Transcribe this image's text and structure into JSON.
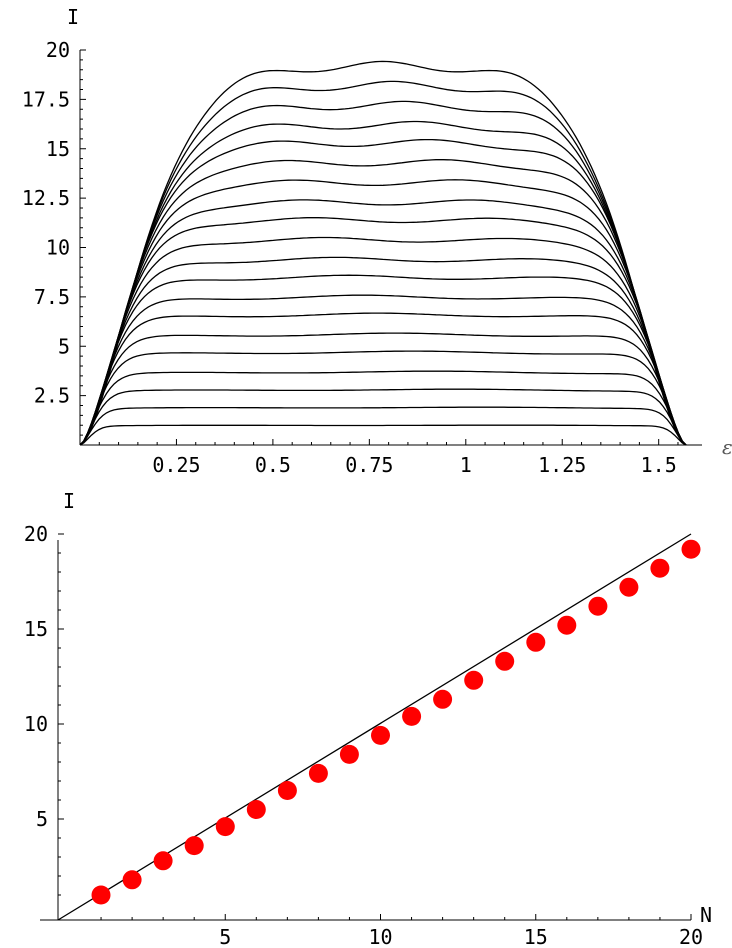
{
  "chart_data": [
    {
      "type": "line",
      "ylabel": "I",
      "xlabel": "ε",
      "xlim": [
        0,
        1.5708
      ],
      "ylim": [
        0,
        20
      ],
      "xticks": [
        "0.25",
        "0.5",
        "0.75",
        "1",
        "1.25",
        "1.5"
      ],
      "yticks": [
        "2.5",
        "5",
        "7.5",
        "10",
        "12.5",
        "15",
        "17.5",
        "20"
      ],
      "series_plateau_values": [
        1,
        1.9,
        2.8,
        3.7,
        4.7,
        5.6,
        6.6,
        7.5,
        8.5,
        9.4,
        10.4,
        11.4,
        12.3,
        13.3,
        14.3,
        15.3,
        16.2,
        17.2,
        18.2,
        19.2
      ],
      "curve_count": 20,
      "grid": false
    },
    {
      "type": "scatter",
      "ylabel": "I",
      "xlabel": "N",
      "xlim": [
        0,
        20
      ],
      "ylim": [
        0,
        20
      ],
      "xticks": [
        "5",
        "10",
        "15",
        "20"
      ],
      "yticks": [
        "5",
        "10",
        "15",
        "20"
      ],
      "points": {
        "x": [
          1,
          2,
          3,
          4,
          5,
          6,
          7,
          8,
          9,
          10,
          11,
          12,
          13,
          14,
          15,
          16,
          17,
          18,
          19,
          20
        ],
        "y": [
          1.0,
          1.8,
          2.8,
          3.6,
          4.6,
          5.5,
          6.5,
          7.4,
          8.4,
          9.4,
          10.4,
          11.3,
          12.3,
          13.3,
          14.3,
          15.2,
          16.2,
          17.2,
          18.2,
          19.2
        ]
      },
      "reference_line": {
        "label": "",
        "slope": 1,
        "intercept": 0
      },
      "point_color": "#ff0000",
      "grid": false
    }
  ]
}
